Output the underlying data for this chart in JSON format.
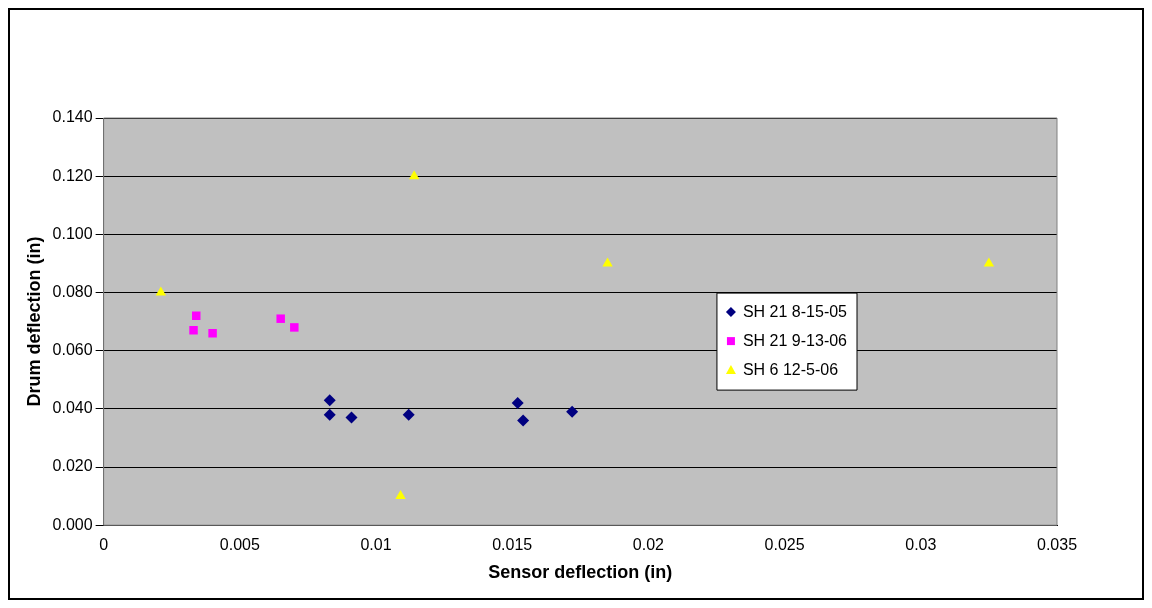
{
  "chart_data": {
    "type": "scatter",
    "xlabel": "Sensor deflection (in)",
    "ylabel": "Drum deflection (in)",
    "xlim": [
      0,
      0.035
    ],
    "xticks": [
      0,
      0.005,
      0.01,
      0.015,
      0.02,
      0.025,
      0.03,
      0.035
    ],
    "ylim": [
      0,
      0.14
    ],
    "yticks": [
      {
        "value": 0,
        "label": "0.000"
      },
      {
        "value": 0.02,
        "label": "0.020"
      },
      {
        "value": 0.04,
        "label": "0.040"
      },
      {
        "value": 0.06,
        "label": "0.060"
      },
      {
        "value": 0.08,
        "label": "0.080"
      },
      {
        "value": 0.1,
        "label": "0.100"
      },
      {
        "value": 0.12,
        "label": "0.120"
      },
      {
        "value": 0.14,
        "label": "0.140"
      }
    ],
    "grid": "y",
    "legend": "right",
    "series": [
      {
        "name": "SH 21 8-15-05",
        "color": "#000080",
        "marker": "diamond",
        "x": [
          0.0083,
          0.0083,
          0.0091,
          0.0112,
          0.0152,
          0.0154,
          0.0172
        ],
        "values": [
          0.043,
          0.038,
          0.037,
          0.038,
          0.042,
          0.036,
          0.039
        ]
      },
      {
        "name": "SH 21 9-13-06",
        "color": "#ff00ff",
        "marker": "square",
        "x": [
          0.0034,
          0.0033,
          0.004,
          0.0065,
          0.007
        ],
        "values": [
          0.072,
          0.067,
          0.066,
          0.071,
          0.068
        ]
      },
      {
        "name": "SH 6 12-5-06",
        "color": "#ffff00",
        "marker": "triangle",
        "x": [
          0.0021,
          0.0114,
          0.0185,
          0.0325,
          0.0109
        ],
        "values": [
          0.08,
          0.12,
          0.09,
          0.09,
          0.01
        ]
      }
    ]
  }
}
